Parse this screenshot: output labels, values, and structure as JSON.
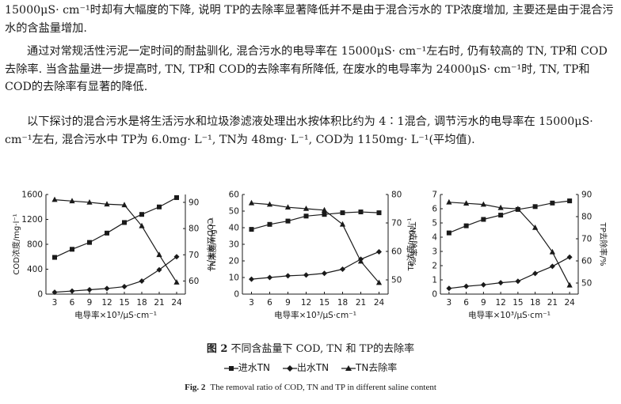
{
  "text": {
    "p1": "15000μS· cm⁻¹时却有大幅度的下降, 说明 TP的去除率显著降低并不是由于混合污水的 TP浓度增加, 主要还是由于混合污水的含盐量增加.",
    "p2": "通过对常规活性污泥一定时间的耐盐驯化, 混合污水的电导率在 15000μS· cm⁻¹左右时, 仍有较高的 TN, TP和 COD去除率. 当含盐量进一步提高时, TN, TP和 COD的去除率有所降低, 在废水的电导率为 24000μS· cm⁻¹时, TN, TP和 COD的去除率有显著的降低.",
    "p3": "以下探讨的混合污水是将生活污水和垃圾渗滤液处理出水按体积比约为 4∶1混合, 调节污水的电导率在 15000μS· cm⁻¹左右, 混合污水中 TP为 6.0mg· L⁻¹, TN为 48mg· L⁻¹, COD为 1150mg· L⁻¹(平均值)."
  },
  "figure": {
    "caption_cn_label": "图 2",
    "caption_cn": "不同含盐量下 COD, TN 和 TP的去除率",
    "caption_en_label": "Fig. 2",
    "caption_en": "The removal ratio of COD, TN and TP in different saline content",
    "legend": [
      "进水TN",
      "出水TN",
      "TN去除率"
    ]
  },
  "colors": {
    "ink": "#1a1a1a"
  },
  "chart_data": [
    {
      "type": "line",
      "x": [
        3,
        6,
        9,
        12,
        15,
        18,
        21,
        24
      ],
      "xlabel": "电导率×10³/μS·cm⁻¹",
      "ylabel": "COD浓度/mg·l⁻¹",
      "ylabel_right": "COD去除率/%",
      "ylim": [
        0,
        1600
      ],
      "yticks": [
        0,
        400,
        800,
        1200,
        1600
      ],
      "ylim_right": [
        55,
        93
      ],
      "yticks_right": [
        60,
        70,
        80,
        90
      ],
      "series": [
        {
          "marker": "square",
          "axis": "left",
          "values": [
            590,
            720,
            830,
            980,
            1150,
            1280,
            1400,
            1550
          ]
        },
        {
          "marker": "diamond",
          "axis": "left",
          "values": [
            30,
            50,
            70,
            90,
            120,
            210,
            390,
            600
          ]
        },
        {
          "marker": "triangle",
          "axis": "right",
          "values": [
            91,
            90.5,
            90,
            89.3,
            89,
            81,
            70,
            59.5
          ]
        }
      ]
    },
    {
      "type": "line",
      "x": [
        3,
        6,
        9,
        12,
        15,
        18,
        21,
        24
      ],
      "xlabel": "电导率×10³/μS·cm⁻¹",
      "ylabel": "TN浓度/mg·l⁻¹",
      "ylabel_right": "TN去除率/%",
      "ylim": [
        0,
        60
      ],
      "yticks": [
        0,
        10,
        20,
        30,
        40,
        50,
        60
      ],
      "ylim_right": [
        45,
        80
      ],
      "yticks_right": [
        50,
        60,
        70,
        80
      ],
      "series": [
        {
          "name": "进水TN",
          "marker": "square",
          "axis": "left",
          "values": [
            39,
            42,
            44,
            47,
            48,
            49,
            49.5,
            49
          ]
        },
        {
          "name": "出水TN",
          "marker": "diamond",
          "axis": "left",
          "values": [
            9,
            10,
            11,
            11.5,
            12.5,
            15,
            21,
            25.5
          ]
        },
        {
          "name": "TN去除率",
          "marker": "triangle",
          "axis": "right",
          "values": [
            77,
            76.5,
            75.5,
            75,
            74.5,
            69.5,
            56.5,
            49
          ]
        }
      ]
    },
    {
      "type": "line",
      "x": [
        3,
        6,
        9,
        12,
        15,
        18,
        21,
        24
      ],
      "xlabel": "电导率×10³/μS·cm⁻¹",
      "ylabel": "TP浓度/mg·l⁻¹",
      "ylabel_right": "TP去除率/%",
      "ylim": [
        0,
        7
      ],
      "yticks": [
        0,
        1,
        2,
        3,
        4,
        5,
        6,
        7
      ],
      "ylim_right": [
        45,
        90
      ],
      "yticks_right": [
        50,
        60,
        70,
        80,
        90
      ],
      "series": [
        {
          "marker": "square",
          "axis": "left",
          "values": [
            4.3,
            4.8,
            5.25,
            5.55,
            5.95,
            6.15,
            6.4,
            6.55
          ]
        },
        {
          "marker": "diamond",
          "axis": "left",
          "values": [
            0.4,
            0.55,
            0.65,
            0.8,
            0.9,
            1.45,
            1.95,
            2.6
          ]
        },
        {
          "marker": "triangle",
          "axis": "right",
          "values": [
            86.5,
            86,
            85.5,
            84,
            83.5,
            75,
            64,
            49
          ]
        }
      ]
    }
  ]
}
